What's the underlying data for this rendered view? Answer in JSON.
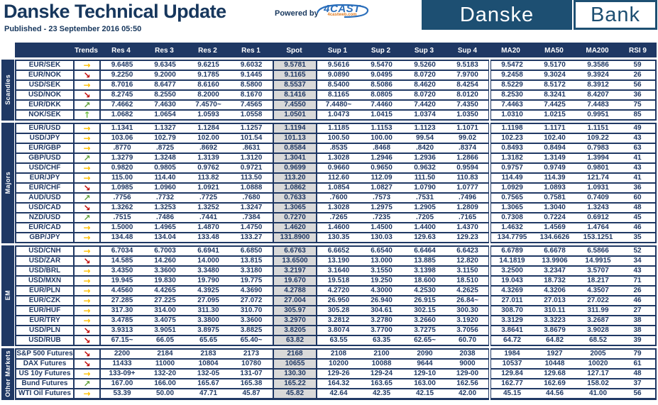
{
  "header": {
    "title": "Danske Technical Update",
    "published": "Published - 23 September 2016 05:50",
    "powered_by": "Powered by",
    "vendor_logo": {
      "name": "4CAST",
      "subtext": "4castweb.com"
    },
    "bank_logo": {
      "left": "Danske",
      "right": "Bank"
    }
  },
  "colors": {
    "navy": "#1f3864",
    "logo_blue": "#1d4f72",
    "spot_bg": "#d9d9d9",
    "trend_right": "#ffc000",
    "trend_down": "#c00000",
    "trend_up_right": "#61a13c",
    "trend_up": "#71bf44"
  },
  "table": {
    "columns": [
      "Trends",
      "Res 4",
      "Res 3",
      "Res 2",
      "Res 1",
      "Spot",
      "Sup 1",
      "Sup 2",
      "Sup 3",
      "Sup 4",
      "MA20",
      "MA50",
      "MA200",
      "RSI 9"
    ],
    "groups": [
      {
        "label": "Scandies",
        "rows": [
          {
            "name": "EUR/SEK",
            "trend": "right",
            "values": [
              "9.6485",
              "9.6345",
              "9.6215",
              "9.6032",
              "9.5781",
              "9.5616",
              "9.5470",
              "9.5260",
              "9.5183",
              "9.5472",
              "9.5170",
              "9.3586",
              "59"
            ]
          },
          {
            "name": "EUR/NOK",
            "trend": "down-right",
            "values": [
              "9.2250",
              "9.2000",
              "9.1785",
              "9.1445",
              "9.1165",
              "9.0890",
              "9.0495",
              "8.0720",
              "7.9700",
              "9.2458",
              "9.3024",
              "9.3924",
              "26"
            ]
          },
          {
            "name": "USD/SEK",
            "trend": "right",
            "values": [
              "8.7016",
              "8.6477",
              "8.6160",
              "8.5800",
              "8.5537",
              "8.5400",
              "8.5086",
              "8.4620",
              "8.4254",
              "8.5229",
              "8.5172",
              "8.3912",
              "56"
            ]
          },
          {
            "name": "USD/NOK",
            "trend": "down-right",
            "values": [
              "8.2745",
              "8.2550",
              "8.2000",
              "8.1670",
              "8.1416",
              "8.1165",
              "8.0805",
              "8.0720",
              "8.0120",
              "8.2530",
              "8.3241",
              "8.4207",
              "36"
            ]
          },
          {
            "name": "EUR/DKK",
            "trend": "up-right",
            "values": [
              "7.4662",
              "7.4630",
              "7.4570~",
              "7.4565",
              "7.4550",
              "7.4480~",
              "7.4460",
              "7.4420",
              "7.4350",
              "7.4463",
              "7.4425",
              "7.4483",
              "75"
            ]
          },
          {
            "name": "NOK/SEK",
            "trend": "up",
            "values": [
              "1.0682",
              "1.0654",
              "1.0593",
              "1.0558",
              "1.0501",
              "1.0473",
              "1.0415",
              "1.0374",
              "1.0350",
              "1.0310",
              "1.0215",
              "0.9951",
              "85"
            ]
          }
        ]
      },
      {
        "label": "Majors",
        "rows": [
          {
            "name": "EUR/USD",
            "trend": "right",
            "values": [
              "1.1341",
              "1.1327",
              "1.1284",
              "1.1257",
              "1.1194",
              "1.1185",
              "1.1153",
              "1.1123",
              "1.1071",
              "1.1198",
              "1.1171",
              "1.1151",
              "49"
            ]
          },
          {
            "name": "USD/JPY",
            "trend": "right",
            "values": [
              "103.06",
              "102.79",
              "102.00",
              "101.54",
              "101.13",
              "100.50",
              "100.00",
              "99.54",
              "99.02",
              "102.23",
              "102.40",
              "109.22",
              "43"
            ]
          },
          {
            "name": "EUR/GBP",
            "trend": "right",
            "values": [
              ".8770",
              ".8725",
              ".8692",
              ".8631",
              "0.8584",
              ".8535",
              ".8468",
              ".8420",
              ".8374",
              "0.8493",
              "0.8494",
              "0.7983",
              "63"
            ]
          },
          {
            "name": "GBP/USD",
            "trend": "up-right",
            "values": [
              "1.3279",
              "1.3248",
              "1.3139",
              "1.3120",
              "1.3041",
              "1.3028",
              "1.2946",
              "1.2936",
              "1.2866",
              "1.3182",
              "1.3149",
              "1.3994",
              "41"
            ]
          },
          {
            "name": "USD/CHF",
            "trend": "right",
            "values": [
              "0.9820",
              "0.9805",
              "0.9762",
              "0.9721",
              "0.9699",
              "0.9660",
              "0.9650",
              "0.9632",
              "0.9594",
              "0.9757",
              "0.9749",
              "0.9801",
              "43"
            ]
          },
          {
            "name": "EUR/JPY",
            "trend": "right",
            "values": [
              "115.00",
              "114.40",
              "113.82",
              "113.50",
              "113.20",
              "112.60",
              "112.09",
              "111.50",
              "110.83",
              "114.49",
              "114.39",
              "121.74",
              "41"
            ]
          },
          {
            "name": "EUR/CHF",
            "trend": "down-right",
            "values": [
              "1.0985",
              "1.0960",
              "1.0921",
              "1.0888",
              "1.0862",
              "1.0854",
              "1.0827",
              "1.0790",
              "1.0777",
              "1.0929",
              "1.0893",
              "1.0931",
              "36"
            ]
          },
          {
            "name": "AUD/USD",
            "trend": "up-right",
            "values": [
              ".7756",
              ".7732",
              ".7725",
              ".7680",
              "0.7633",
              ".7600",
              ".7573",
              ".7531",
              ".7496",
              "0.7565",
              "0.7581",
              "0.7409",
              "60"
            ]
          },
          {
            "name": "USD/CAD",
            "trend": "down-right",
            "values": [
              "1.3262",
              "1.3253",
              "1.3252",
              "1.3247",
              "1.3065",
              "1.3028",
              "1.2975",
              "1.2905",
              "1.2809",
              "1.3065",
              "1.3040",
              "1.3243",
              "48"
            ]
          },
          {
            "name": "NZD/USD",
            "trend": "up-right",
            "values": [
              ".7515",
              ".7486",
              ".7441",
              ".7384",
              "0.7270",
              ".7265",
              ".7235",
              ".7205",
              ".7165",
              "0.7308",
              "0.7224",
              "0.6912",
              "45"
            ]
          },
          {
            "name": "EUR/CAD",
            "trend": "right",
            "values": [
              "1.5000",
              "1.4965",
              "1.4870",
              "1.4750",
              "1.4620",
              "1.4600",
              "1.4500",
              "1.4400",
              "1.4370",
              "1.4632",
              "1.4569",
              "1.4764",
              "46"
            ]
          },
          {
            "name": "GBP/JPY",
            "trend": "right",
            "values": [
              "134.48",
              "134.04",
              "133.48",
              "133.27",
              "131.8900",
              "130.35",
              "130.03",
              "129.63",
              "129.23",
              "134.7795",
              "134.6626",
              "153.1251",
              "35"
            ]
          }
        ]
      },
      {
        "label": "EM",
        "rows": [
          {
            "name": "USD/CNH",
            "trend": "right",
            "values": [
              "6.7034",
              "6.7003",
              "6.6941",
              "6.6850",
              "6.6763",
              "6.6652",
              "6.6540",
              "6.6464",
              "6.6423",
              "6.6789",
              "6.6678",
              "6.5866",
              "52"
            ]
          },
          {
            "name": "USD/ZAR",
            "trend": "down-right",
            "values": [
              "14.585",
              "14.260",
              "14.000",
              "13.815",
              "13.6500",
              "13.190",
              "13.000",
              "13.885",
              "12.820",
              "14.1819",
              "13.9906",
              "14.9915",
              "34"
            ]
          },
          {
            "name": "USD/BRL",
            "trend": "right",
            "values": [
              "3.4350",
              "3.3600",
              "3.3480",
              "3.3180",
              "3.2197",
              "3.1640",
              "3.1550",
              "3.1398",
              "3.1150",
              "3.2500",
              "3.2347",
              "3.5707",
              "43"
            ]
          },
          {
            "name": "USD/MXN",
            "trend": "right",
            "values": [
              "19.945",
              "19.830",
              "19.790",
              "19.775",
              "19.670",
              "19.518",
              "19.250",
              "18.600",
              "18.510",
              "19.043",
              "18.732",
              "18.217",
              "71"
            ]
          },
          {
            "name": "EUR/PLN",
            "trend": "right",
            "values": [
              "4.4560",
              "4.4265",
              "4.3925",
              "4.3690",
              "4.2788",
              "4.2720",
              "4.3000",
              "4.2530",
              "4.2625",
              "4.3269",
              "4.3206",
              "4.3507",
              "26"
            ]
          },
          {
            "name": "EUR/CZK",
            "trend": "right",
            "values": [
              "27.285",
              "27.225",
              "27.095",
              "27.072",
              "27.004",
              "26.950",
              "26.940",
              "26.915",
              "26.84~",
              "27.011",
              "27.013",
              "27.022",
              "46"
            ]
          },
          {
            "name": "EUR/HUF",
            "trend": "right",
            "values": [
              "317.30",
              "314.00",
              "311.30",
              "310.70",
              "305.97",
              "305.28",
              "304.61",
              "302.15",
              "300.30",
              "308.70",
              "310.11",
              "311.99",
              "27"
            ]
          },
          {
            "name": "EUR/TRY",
            "trend": "right",
            "values": [
              "3.4785",
              "3.4075",
              "3.3800",
              "3.3600",
              "3.2970",
              "3.2812",
              "3.2780",
              "3.2660",
              "3.1920",
              "3.3129",
              "3.3223",
              "3.2687",
              "38"
            ]
          },
          {
            "name": "USD/PLN",
            "trend": "down-right",
            "values": [
              "3.9313",
              "3.9051",
              "3.8975",
              "3.8825",
              "3.8205",
              "3.8074",
              "3.7700",
              "3.7275",
              "3.7056",
              "3.8641",
              "3.8679",
              "3.9028",
              "38"
            ]
          },
          {
            "name": "USD/RUB",
            "trend": "down-right",
            "values": [
              "67.15~",
              "66.05",
              "65.65",
              "65.40~",
              "63.82",
              "63.55",
              "63.35",
              "62.65~",
              "60.70",
              "64.72",
              "64.82",
              "68.52",
              "39"
            ]
          }
        ]
      },
      {
        "label": "Other Markets",
        "rows": [
          {
            "name": "S&P 500 Futures",
            "trend": "down-right",
            "values": [
              "2200",
              "2184",
              "2183",
              "2173",
              "2168",
              "2108",
              "2100",
              "2090",
              "2038",
              "1984",
              "1927",
              "2005",
              "79"
            ]
          },
          {
            "name": "DAX Futures",
            "trend": "down-right",
            "values": [
              "11433",
              "11000",
              "10804",
              "10780",
              "10655",
              "10200",
              "10088",
              "9644",
              "9000",
              "10537",
              "10448",
              "10020",
              "61"
            ]
          },
          {
            "name": "US 10y Futures",
            "trend": "right",
            "values": [
              "133-09+",
              "132-20",
              "132-05",
              "131-07",
              "130.30",
              "129-26",
              "129-24",
              "129-10",
              "129-00",
              "129.84",
              "129.68",
              "127.17",
              "48"
            ]
          },
          {
            "name": "Bund Futures",
            "trend": "up-right",
            "values": [
              "167.00",
              "166.00",
              "165.67",
              "165.38",
              "165.22",
              "164.32",
              "163.65",
              "163.00",
              "162.56",
              "162.77",
              "162.69",
              "158.02",
              "37"
            ]
          },
          {
            "name": "WTI Oil Futures",
            "trend": "right",
            "values": [
              "53.39",
              "50.00",
              "47.71",
              "45.87",
              "45.82",
              "42.64",
              "42.35",
              "42.15",
              "42.00",
              "45.15",
              "44.56",
              "41.00",
              "56"
            ]
          }
        ]
      }
    ]
  }
}
